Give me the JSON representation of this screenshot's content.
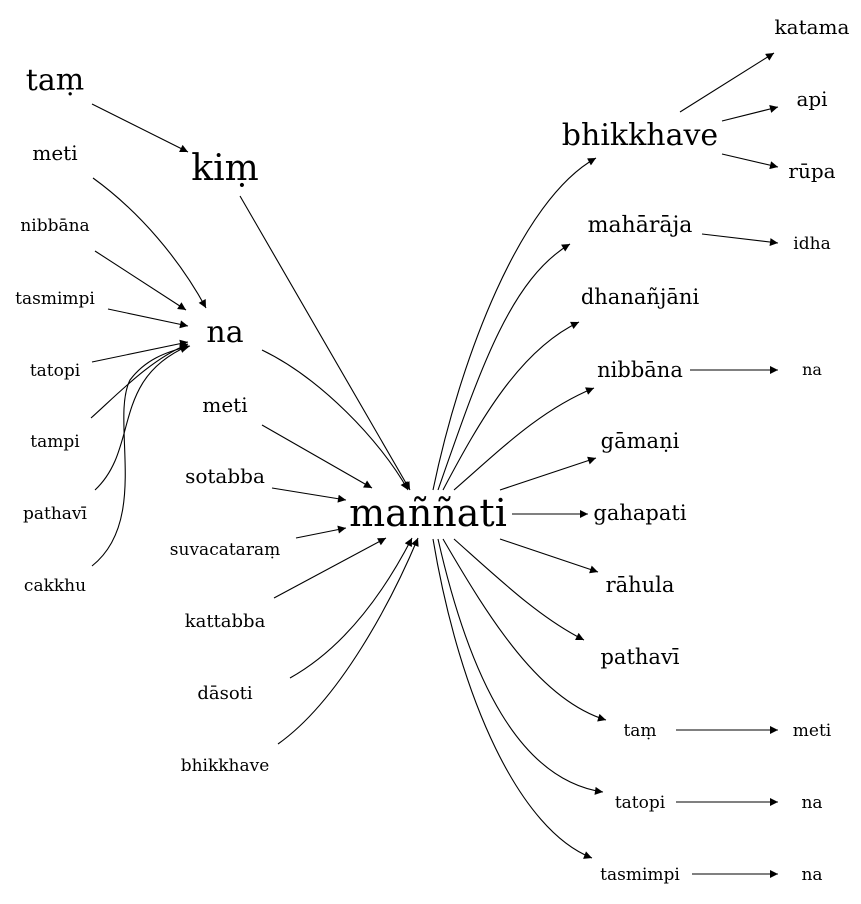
{
  "nodes": {
    "tam_top": "taṃ",
    "kim": "kiṃ",
    "meti_l1": "meti",
    "nibbana_l": "nibbāna",
    "tasmimpi_l": "tasmimpi",
    "na_center": "na",
    "tatopi_l": "tatopi",
    "tampi_l": "tampi",
    "pathavi_l": "pathavī",
    "cakkhu_l": "cakkhu",
    "meti_l2": "meti",
    "sotabba": "sotabba",
    "suvacataram": "suvacataraṃ",
    "kattabba": "kattabba",
    "dasoti": "dāsoti",
    "bhikkhave_l": "bhikkhave",
    "mannati": "maññati",
    "bhikkhave_r": "bhikkhave",
    "katama": "katama",
    "api": "api",
    "rupa": "rūpa",
    "maharaja": "mahārāja",
    "idha": "idha",
    "dhananjani": "dhanañjāni",
    "nibbana_r": "nibbāna",
    "na_r1": "na",
    "gamani": "gāmaṇi",
    "gahapati": "gahapati",
    "rahula": "rāhula",
    "pathavi_r": "pathavī",
    "tam_r": "taṃ",
    "meti_r": "meti",
    "tatopi_r": "tatopi",
    "na_r2": "na",
    "tasmimpi_r": "tasmimpi",
    "na_r3": "na"
  }
}
